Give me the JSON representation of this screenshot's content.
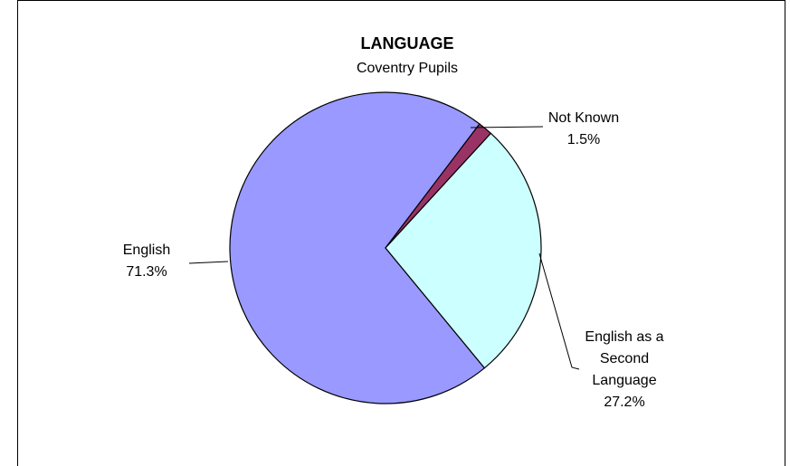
{
  "chart_data": {
    "type": "pie",
    "title": "LANGUAGE",
    "subtitle": "Coventry Pupils",
    "slices": [
      {
        "label": "English",
        "pct_text": "71.3%",
        "value": 71.3,
        "color": "#9999ff"
      },
      {
        "label": "Not Known",
        "pct_text": "1.5%",
        "value": 1.5,
        "color": "#993366"
      },
      {
        "label": "English as a Second Language",
        "label_lines": [
          "English as a",
          "Second",
          "Language"
        ],
        "pct_text": "27.2%",
        "value": 27.2,
        "color": "#ccffff"
      }
    ]
  }
}
